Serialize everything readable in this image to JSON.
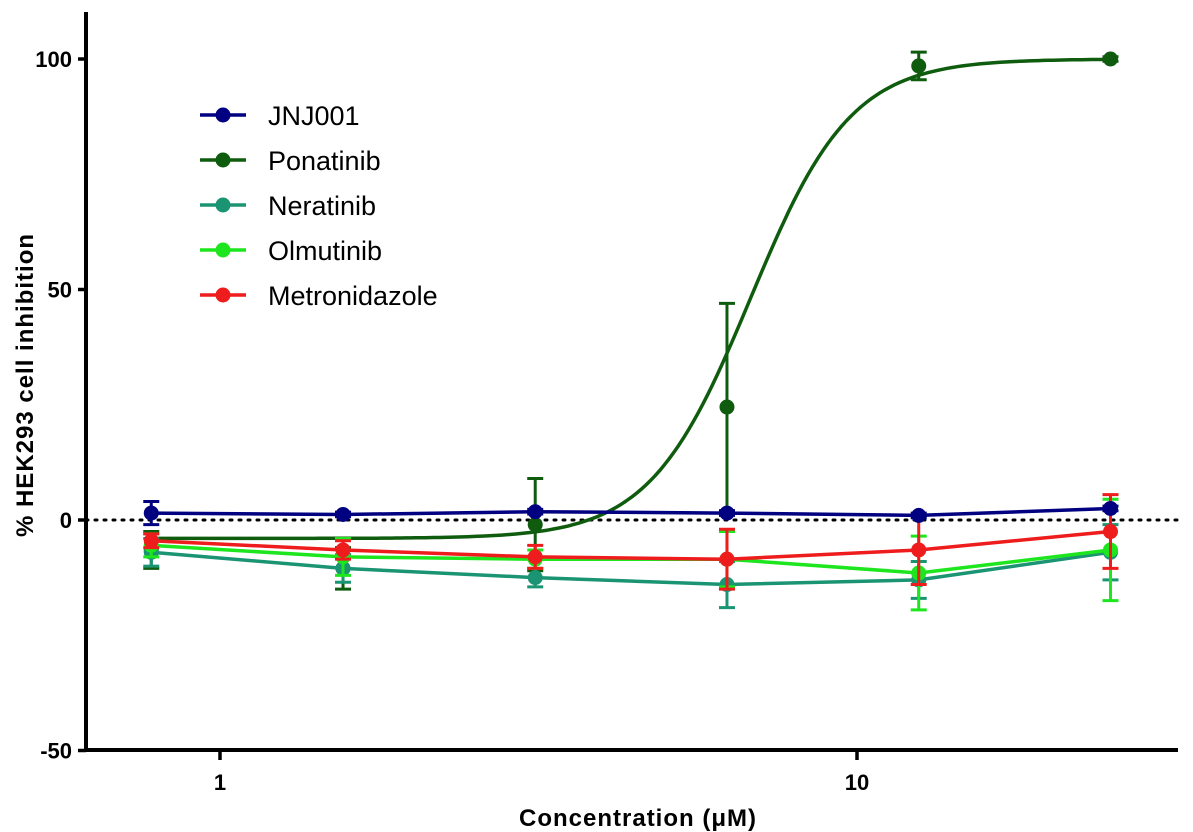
{
  "chart_data": {
    "type": "line",
    "xlabel": "Concentration (μM)",
    "ylabel": "% HEK293 cell inhibition",
    "x_scale": "log",
    "xlim": [
      0.63,
      30
    ],
    "ylim": [
      -50,
      110
    ],
    "x_ticks": [
      1,
      10
    ],
    "x_tick_labels": [
      "1",
      "10"
    ],
    "y_ticks": [
      -50,
      0,
      50,
      100
    ],
    "y_tick_labels": [
      "-50",
      "0",
      "50",
      "100"
    ],
    "zero_reference_line": "dotted",
    "legend_position": "top-left",
    "series": [
      {
        "name": "JNJ001",
        "color": "#000080",
        "x": [
          0.78,
          1.56,
          3.125,
          6.25,
          12.5,
          25
        ],
        "y": [
          1.5,
          1.2,
          1.8,
          1.5,
          1.0,
          2.5
        ],
        "err": [
          2.5,
          0.5,
          0.5,
          0.5,
          0.5,
          0.5
        ],
        "fit": "connect"
      },
      {
        "name": "Ponatinib",
        "color": "#0f5c0f",
        "x": [
          0.78,
          1.56,
          3.125,
          6.25,
          12.5,
          25
        ],
        "y": [
          -6.5,
          -10.5,
          -1.0,
          24.5,
          98.5,
          100
        ],
        "err": [
          4.0,
          4.5,
          10.0,
          22.5,
          3.0,
          0.5
        ],
        "fit": "sigmoid",
        "fit_params": {
          "bottom": -4,
          "top": 100,
          "ec50": 6.8,
          "hill": 5.5
        }
      },
      {
        "name": "Neratinib",
        "color": "#1a9472",
        "x": [
          0.78,
          1.56,
          3.125,
          6.25,
          12.5,
          25
        ],
        "y": [
          -7.0,
          -10.5,
          -12.5,
          -14.0,
          -13.0,
          -7.0
        ],
        "err": [
          3.0,
          3.0,
          2.0,
          5.0,
          4.0,
          6.0
        ],
        "fit": "connect"
      },
      {
        "name": "Olmutinib",
        "color": "#1ee61e",
        "x": [
          0.78,
          1.56,
          3.125,
          6.25,
          12.5,
          25
        ],
        "y": [
          -5.5,
          -8.0,
          -8.5,
          -8.5,
          -11.5,
          -6.5
        ],
        "err": [
          2.5,
          4.0,
          2.0,
          6.0,
          8.0,
          11.0
        ],
        "fit": "connect"
      },
      {
        "name": "Metronidazole",
        "color": "#ee1c1c",
        "x": [
          0.78,
          1.56,
          3.125,
          6.25,
          12.5,
          25
        ],
        "y": [
          -4.5,
          -6.5,
          -8.0,
          -8.5,
          -6.5,
          -2.5
        ],
        "err": [
          1.5,
          2.0,
          2.5,
          6.5,
          7.5,
          8.0
        ],
        "fit": "connect"
      }
    ]
  }
}
